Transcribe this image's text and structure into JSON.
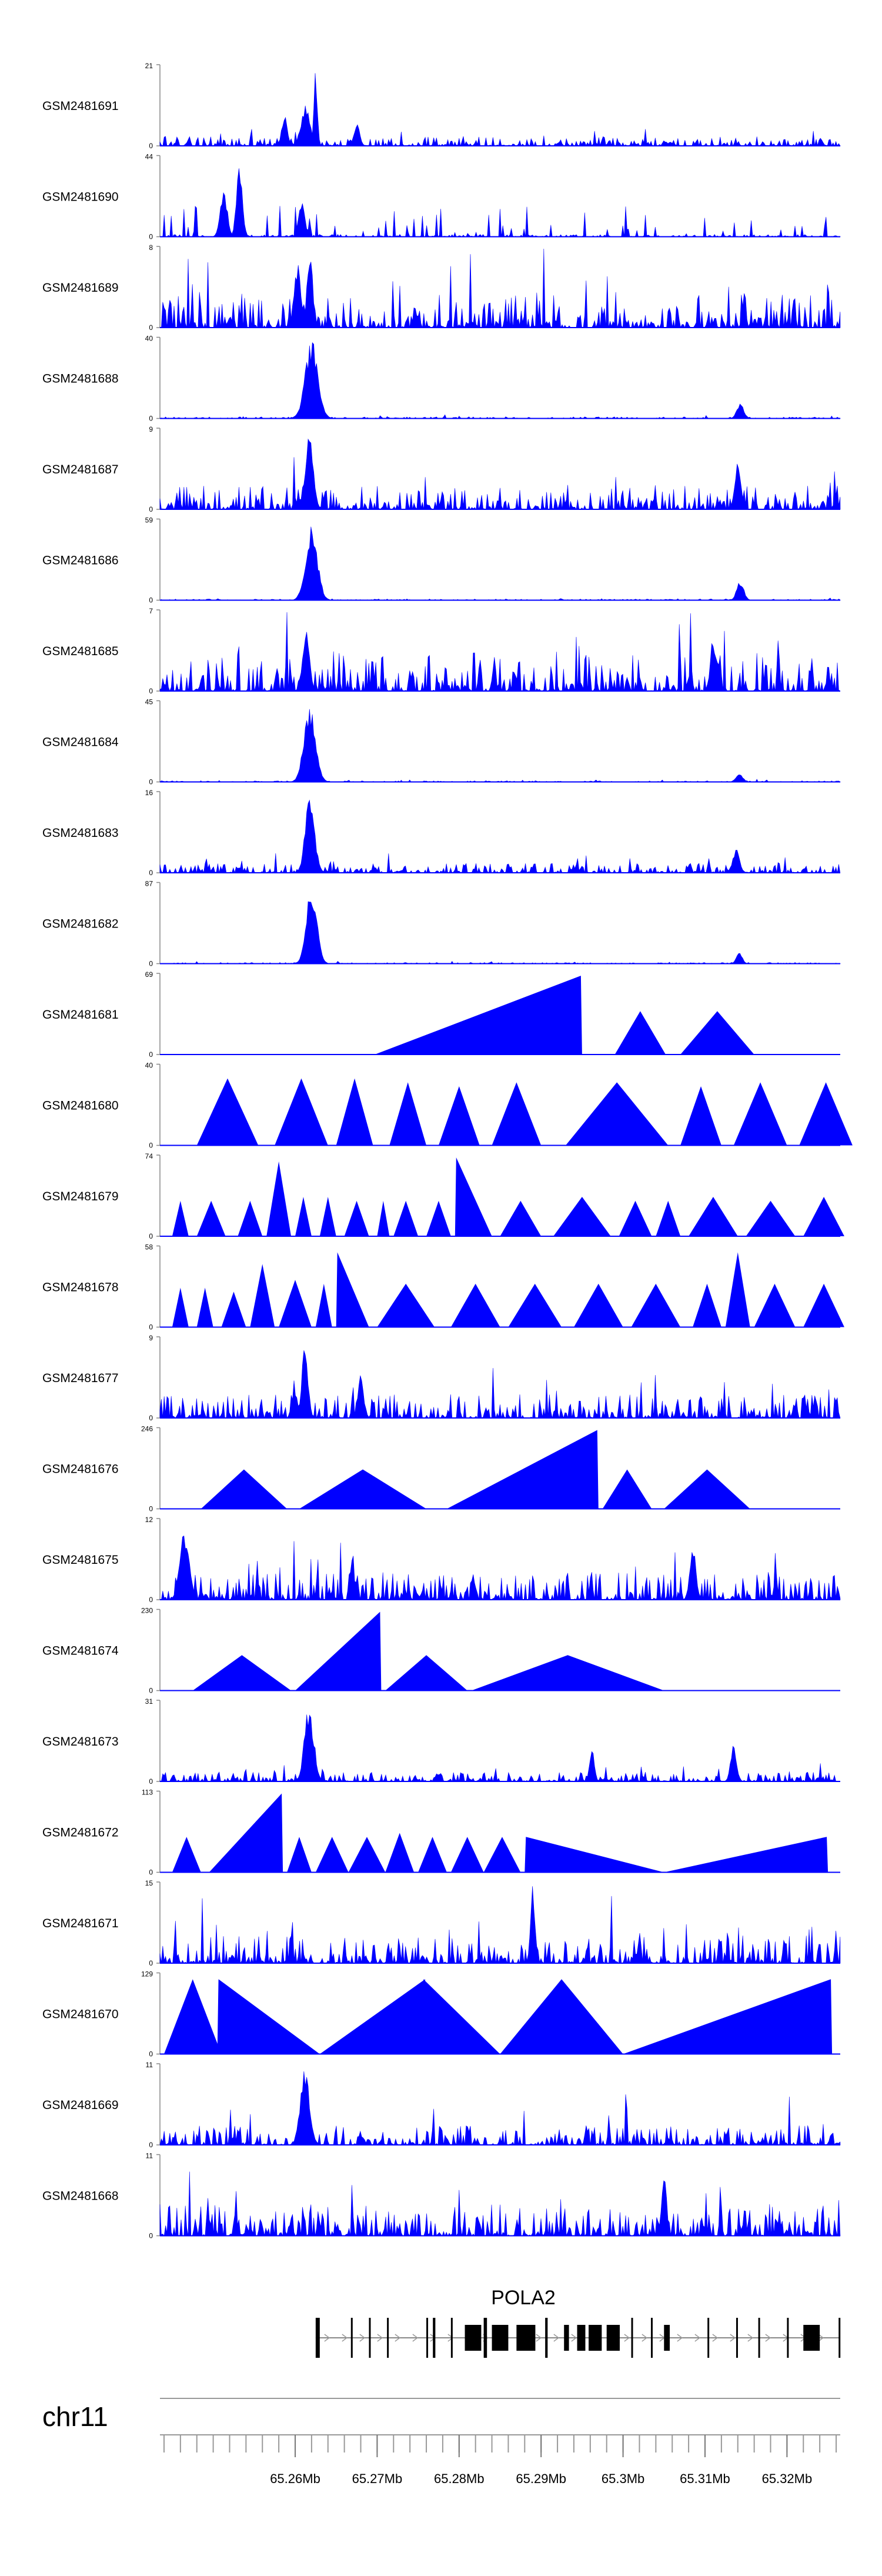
{
  "chart_data": {
    "type": "area",
    "title": "",
    "chromosome": "chr11",
    "xlim": [
      65.2435,
      65.3265
    ],
    "x_unit": "Mb",
    "axis_ticks": [
      "65.26Mb",
      "65.27Mb",
      "65.28Mb",
      "65.29Mb",
      "65.3Mb",
      "65.31Mb",
      "65.32Mb"
    ],
    "tracks": [
      {
        "name": "GSM2481691",
        "ymax": 21,
        "pattern": "noise",
        "base": 0.12,
        "peaks": [
          [
            65.2587,
            0.4,
            0.0005
          ],
          [
            65.2613,
            0.55,
            0.0008
          ],
          [
            65.2625,
            1.0,
            0.0003
          ],
          [
            65.2675,
            0.3,
            0.0005
          ]
        ]
      },
      {
        "name": "GSM2481690",
        "ymax": 44,
        "pattern": "mixed",
        "base": 0.1,
        "peaks": [
          [
            65.2513,
            0.6,
            0.0006
          ],
          [
            65.2532,
            0.95,
            0.0005
          ],
          [
            65.2608,
            0.5,
            0.0005
          ]
        ]
      },
      {
        "name": "GSM2481689",
        "ymax": 8,
        "pattern": "noise",
        "base": 0.45,
        "peaks": [
          [
            65.2603,
            0.85,
            0.0006
          ],
          [
            65.2618,
            1.0,
            0.0005
          ]
        ]
      },
      {
        "name": "GSM2481688",
        "ymax": 40,
        "pattern": "noise",
        "base": 0.02,
        "peaks": [
          [
            65.262,
            1.0,
            0.0011
          ],
          [
            65.3143,
            0.2,
            0.0006
          ]
        ]
      },
      {
        "name": "GSM2481687",
        "ymax": 9,
        "pattern": "noise",
        "base": 0.3,
        "peaks": [
          [
            65.2617,
            1.0,
            0.0007
          ],
          [
            65.314,
            0.7,
            0.0005
          ]
        ]
      },
      {
        "name": "GSM2481686",
        "ymax": 59,
        "pattern": "noise",
        "base": 0.015,
        "peaks": [
          [
            65.262,
            1.0,
            0.001
          ],
          [
            65.3143,
            0.25,
            0.0006
          ]
        ]
      },
      {
        "name": "GSM2481685",
        "ymax": 7,
        "pattern": "noise",
        "base": 0.5,
        "peaks": [
          [
            65.2613,
            0.8,
            0.0006
          ],
          [
            65.311,
            0.7,
            0.0005
          ]
        ]
      },
      {
        "name": "GSM2481684",
        "ymax": 45,
        "pattern": "noise",
        "base": 0.015,
        "peaks": [
          [
            65.2618,
            1.0,
            0.001
          ],
          [
            65.3142,
            0.1,
            0.0006
          ]
        ]
      },
      {
        "name": "GSM2481683",
        "ymax": 16,
        "pattern": "noise",
        "base": 0.12,
        "peaks": [
          [
            65.2618,
            1.0,
            0.0008
          ],
          [
            65.3138,
            0.3,
            0.0006
          ]
        ]
      },
      {
        "name": "GSM2481682",
        "ymax": 87,
        "pattern": "noise",
        "base": 0.015,
        "peaks": [
          [
            65.262,
            1.0,
            0.0009
          ],
          [
            65.3142,
            0.15,
            0.0005
          ]
        ]
      },
      {
        "name": "GSM2481681",
        "ymax": 69,
        "pattern": "tri",
        "segments": [
          [
            65.2697,
            65.295,
            1.0,
            "R"
          ],
          [
            65.299,
            65.3052,
            0.55,
            "M"
          ],
          [
            65.307,
            65.316,
            0.55,
            "M"
          ]
        ]
      },
      {
        "name": "GSM2481680",
        "ymax": 40,
        "pattern": "tri",
        "segments": [
          [
            65.248,
            65.2555,
            0.85,
            "M"
          ],
          [
            65.2575,
            65.264,
            0.85,
            "M"
          ],
          [
            65.265,
            65.2695,
            0.85,
            "M"
          ],
          [
            65.2715,
            65.276,
            0.8,
            "M"
          ],
          [
            65.2775,
            65.2825,
            0.75,
            "M"
          ],
          [
            65.284,
            65.29,
            0.8,
            "M"
          ],
          [
            65.293,
            65.3055,
            0.8,
            "M"
          ],
          [
            65.307,
            65.312,
            0.75,
            "M"
          ],
          [
            65.3135,
            65.32,
            0.8,
            "M"
          ],
          [
            65.3215,
            65.328,
            0.8,
            "M"
          ]
        ]
      },
      {
        "name": "GSM2481679",
        "ymax": 74,
        "pattern": "tri",
        "segments": [
          [
            65.245,
            65.247,
            0.45,
            "M"
          ],
          [
            65.248,
            65.2515,
            0.45,
            "M"
          ],
          [
            65.253,
            65.256,
            0.45,
            "M"
          ],
          [
            65.2565,
            65.2595,
            0.95,
            "M"
          ],
          [
            65.26,
            65.262,
            0.5,
            "M"
          ],
          [
            65.263,
            65.265,
            0.5,
            "M"
          ],
          [
            65.266,
            65.269,
            0.45,
            "M"
          ],
          [
            65.27,
            65.2715,
            0.45,
            "M"
          ],
          [
            65.272,
            65.275,
            0.45,
            "M"
          ],
          [
            65.276,
            65.279,
            0.45,
            "M"
          ],
          [
            65.2795,
            65.284,
            1.0,
            "L"
          ],
          [
            65.285,
            65.29,
            0.45,
            "M"
          ],
          [
            65.2915,
            65.2985,
            0.5,
            "M"
          ],
          [
            65.2995,
            65.3035,
            0.45,
            "M"
          ],
          [
            65.304,
            65.307,
            0.45,
            "M"
          ],
          [
            65.308,
            65.314,
            0.5,
            "M"
          ],
          [
            65.315,
            65.321,
            0.45,
            "M"
          ],
          [
            65.322,
            65.327,
            0.5,
            "M"
          ]
        ]
      },
      {
        "name": "GSM2481678",
        "ymax": 58,
        "pattern": "tri",
        "segments": [
          [
            65.245,
            65.247,
            0.5,
            "M"
          ],
          [
            65.248,
            65.25,
            0.5,
            "M"
          ],
          [
            65.251,
            65.254,
            0.45,
            "M"
          ],
          [
            65.2545,
            65.2575,
            0.8,
            "M"
          ],
          [
            65.258,
            65.262,
            0.6,
            "M"
          ],
          [
            65.2625,
            65.2645,
            0.55,
            "M"
          ],
          [
            65.265,
            65.269,
            0.95,
            "L"
          ],
          [
            65.27,
            65.277,
            0.55,
            "M"
          ],
          [
            65.279,
            65.285,
            0.55,
            "M"
          ],
          [
            65.286,
            65.2925,
            0.55,
            "M"
          ],
          [
            65.294,
            65.3,
            0.55,
            "M"
          ],
          [
            65.301,
            65.307,
            0.55,
            "M"
          ],
          [
            65.3085,
            65.312,
            0.55,
            "M"
          ],
          [
            65.3125,
            65.3155,
            0.95,
            "M"
          ],
          [
            65.316,
            65.321,
            0.55,
            "M"
          ],
          [
            65.322,
            65.327,
            0.55,
            "M"
          ]
        ]
      },
      {
        "name": "GSM2481677",
        "ymax": 9,
        "pattern": "noise",
        "base": 0.3,
        "peaks": [
          [
            65.2612,
            1.0,
            0.0005
          ],
          [
            65.268,
            0.6,
            0.0005
          ]
        ]
      },
      {
        "name": "GSM2481676",
        "ymax": 246,
        "pattern": "tri",
        "segments": [
          [
            65.2485,
            65.259,
            0.5,
            "M"
          ],
          [
            65.2605,
            65.276,
            0.5,
            "M"
          ],
          [
            65.2785,
            65.297,
            1.0,
            "R"
          ],
          [
            65.2975,
            65.3035,
            0.5,
            "M"
          ],
          [
            65.305,
            65.3155,
            0.5,
            "M"
          ]
        ]
      },
      {
        "name": "GSM2481675",
        "ymax": 12,
        "pattern": "noise",
        "base": 0.35,
        "peaks": [
          [
            65.2465,
            0.9,
            0.0008
          ],
          [
            65.3085,
            0.75,
            0.0005
          ]
        ]
      },
      {
        "name": "GSM2481674",
        "ymax": 230,
        "pattern": "tri",
        "segments": [
          [
            65.2475,
            65.2595,
            0.45,
            "M"
          ],
          [
            65.26,
            65.2705,
            1.0,
            "R"
          ],
          [
            65.271,
            65.281,
            0.45,
            "M"
          ],
          [
            65.2815,
            65.305,
            0.45,
            "M"
          ]
        ]
      },
      {
        "name": "GSM2481673",
        "ymax": 31,
        "pattern": "noise",
        "base": 0.12,
        "peaks": [
          [
            65.2617,
            1.0,
            0.0008
          ],
          [
            65.2962,
            0.5,
            0.0004
          ],
          [
            65.3135,
            0.5,
            0.0005
          ]
        ]
      },
      {
        "name": "GSM2481672",
        "ymax": 113,
        "pattern": "tri",
        "segments": [
          [
            65.245,
            65.2485,
            0.45,
            "M"
          ],
          [
            65.2495,
            65.2585,
            1.0,
            "R"
          ],
          [
            65.259,
            65.262,
            0.45,
            "M"
          ],
          [
            65.2625,
            65.2665,
            0.45,
            "M"
          ],
          [
            65.2665,
            65.271,
            0.45,
            "M"
          ],
          [
            65.271,
            65.2745,
            0.5,
            "M"
          ],
          [
            65.275,
            65.2785,
            0.45,
            "M"
          ],
          [
            65.279,
            65.283,
            0.45,
            "M"
          ],
          [
            65.283,
            65.2875,
            0.45,
            "M"
          ],
          [
            65.288,
            65.305,
            0.45,
            "L"
          ],
          [
            65.305,
            65.325,
            0.45,
            "R"
          ]
        ]
      },
      {
        "name": "GSM2481671",
        "ymax": 15,
        "pattern": "noise",
        "base": 0.35,
        "peaks": [
          [
            65.289,
            1.0,
            0.0004
          ]
        ]
      },
      {
        "name": "GSM2481670",
        "ymax": 129,
        "pattern": "tri",
        "segments": [
          [
            65.244,
            65.251,
            0.95,
            "M"
          ],
          [
            65.2505,
            65.263,
            0.95,
            "L"
          ],
          [
            65.263,
            65.276,
            0.95,
            "R"
          ],
          [
            65.2755,
            65.285,
            0.95,
            "L"
          ],
          [
            65.285,
            65.3,
            0.95,
            "M"
          ],
          [
            65.3,
            65.3255,
            0.95,
            "R"
          ]
        ]
      },
      {
        "name": "GSM2481669",
        "ymax": 11,
        "pattern": "noise",
        "base": 0.25,
        "peaks": [
          [
            65.2612,
            1.0,
            0.0008
          ]
        ]
      },
      {
        "name": "GSM2481668",
        "ymax": 11,
        "pattern": "noise",
        "base": 0.4,
        "peaks": [
          [
            65.305,
            0.95,
            0.0004
          ]
        ]
      }
    ],
    "gene": {
      "name": "POLA2",
      "start": 65.2625,
      "end": 65.3265,
      "exons": [
        [
          65.2625,
          65.263
        ],
        [
          65.2668,
          65.267
        ],
        [
          65.269,
          65.2692
        ],
        [
          65.2712,
          65.2714
        ],
        [
          65.276,
          65.2762
        ],
        [
          65.2768,
          65.2771
        ],
        [
          65.279,
          65.2792
        ],
        [
          65.2807,
          65.2827
        ],
        [
          65.283,
          65.2834
        ],
        [
          65.284,
          65.286
        ],
        [
          65.287,
          65.2893
        ],
        [
          65.2905,
          65.2908
        ],
        [
          65.2928,
          65.2934
        ],
        [
          65.2944,
          65.2954
        ],
        [
          65.2958,
          65.2974
        ],
        [
          65.298,
          65.2996
        ],
        [
          65.301,
          65.3012
        ],
        [
          65.3034,
          65.3036
        ],
        [
          65.305,
          65.3057
        ],
        [
          65.3103,
          65.3105
        ],
        [
          65.3138,
          65.314
        ],
        [
          65.3165,
          65.3167
        ],
        [
          65.32,
          65.3202
        ],
        [
          65.322,
          65.324
        ],
        [
          65.3263,
          65.3265
        ]
      ]
    }
  }
}
